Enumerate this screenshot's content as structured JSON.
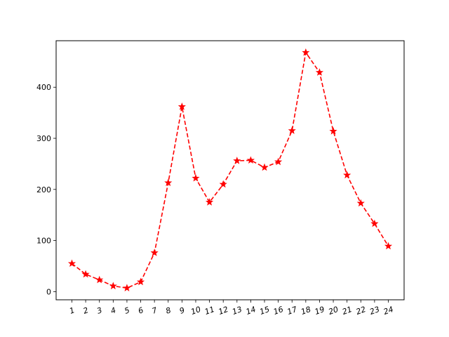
{
  "chart_data": {
    "type": "line",
    "title": "",
    "xlabel": "",
    "ylabel": "",
    "x": [
      "1",
      "2",
      "3",
      "4",
      "5",
      "6",
      "7",
      "8",
      "9",
      "10",
      "11",
      "12",
      "13",
      "14",
      "15",
      "16",
      "17",
      "18",
      "19",
      "20",
      "21",
      "22",
      "23",
      "24"
    ],
    "series": [
      {
        "values": [
          55,
          34,
          23,
          11,
          7,
          19,
          76,
          213,
          362,
          222,
          175,
          210,
          256,
          257,
          243,
          254,
          315,
          468,
          429,
          314,
          228,
          173,
          133,
          89
        ],
        "color": "#ff0000",
        "line_style": "dashed",
        "marker": "star"
      }
    ],
    "yticks": [
      0,
      100,
      200,
      300,
      400
    ],
    "ylim": [
      -16,
      491
    ],
    "grid": false,
    "legend": "none"
  }
}
